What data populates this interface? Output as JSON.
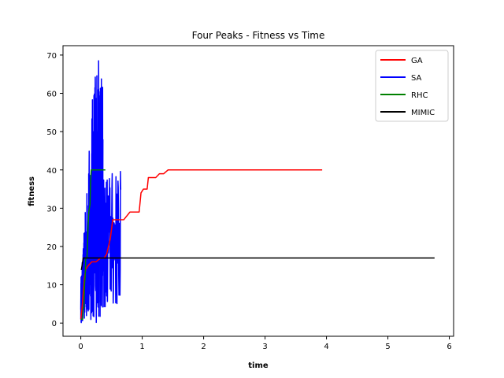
{
  "chart_data": {
    "type": "line",
    "title": "Four Peaks - Fitness vs Time",
    "xlabel": "time",
    "ylabel": "fitness",
    "xlim": [
      -0.29,
      6.07
    ],
    "ylim": [
      -3.45,
      72.45
    ],
    "xticks": [
      0,
      1,
      2,
      3,
      4,
      5,
      6
    ],
    "yticks": [
      0,
      10,
      20,
      30,
      40,
      50,
      60,
      70
    ],
    "grid": false,
    "legend_position": "top-right",
    "series": [
      {
        "name": "GA",
        "color": "#ff0000",
        "x": [
          0.0,
          0.02,
          0.04,
          0.06,
          0.08,
          0.12,
          0.18,
          0.25,
          0.32,
          0.38,
          0.42,
          0.45,
          0.48,
          0.52,
          0.6,
          0.7,
          0.8,
          0.85,
          0.95,
          0.98,
          1.02,
          1.08,
          1.1,
          1.22,
          1.28,
          1.35,
          1.42,
          1.45,
          1.6,
          2.0,
          2.5,
          3.0,
          3.5,
          3.93
        ],
        "y": [
          1,
          4,
          8,
          12,
          14,
          15,
          16,
          16,
          17,
          17,
          18,
          20,
          22,
          27,
          27,
          27,
          29,
          29,
          29,
          34,
          35,
          35,
          38,
          38,
          39,
          39,
          40,
          40,
          40,
          40,
          40,
          40,
          40,
          40
        ]
      },
      {
        "name": "SA",
        "color": "#0000ff",
        "x": [],
        "y": []
      },
      {
        "name": "RHC",
        "color": "#008000",
        "x": [
          0.0,
          0.01,
          0.02,
          0.03,
          0.04,
          0.05,
          0.06,
          0.07,
          0.08,
          0.09,
          0.1,
          0.11,
          0.12,
          0.13,
          0.14,
          0.15,
          0.16,
          0.17,
          0.18,
          0.2,
          0.25,
          0.3,
          0.35,
          0.4
        ],
        "y": [
          1,
          1,
          1,
          1,
          4,
          4,
          10,
          12,
          17,
          17,
          17,
          21,
          26,
          29,
          30,
          31,
          37,
          40,
          40,
          40,
          40,
          40,
          40,
          40
        ]
      },
      {
        "name": "MIMIC",
        "color": "#000000",
        "x": [
          0.0,
          0.01,
          0.02,
          0.03,
          0.04,
          0.05,
          0.1,
          0.5,
          1.0,
          2.0,
          3.0,
          4.0,
          5.0,
          5.76
        ],
        "y": [
          14,
          14,
          15,
          16,
          17,
          17,
          17,
          17,
          17,
          17,
          17,
          17,
          17,
          17
        ]
      }
    ]
  }
}
